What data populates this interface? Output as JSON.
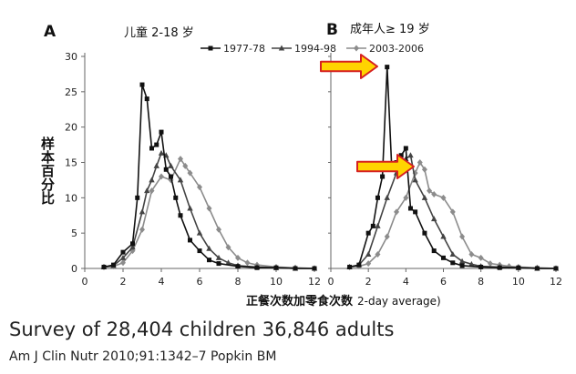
{
  "ylabel": "样本百分比",
  "xlabel": "正餐次数加零食次数",
  "xlabel_suffix": "2-day average)",
  "legend": {
    "entries": [
      {
        "name": "1977-78",
        "color": "#111111",
        "marker": "square"
      },
      {
        "name": "1994-98",
        "color": "#444444",
        "marker": "triangle"
      },
      {
        "name": "2003-2006",
        "color": "#8c8c8c",
        "marker": "diamond"
      }
    ]
  },
  "caption": "Survey of 28,404 children 36,846 adults",
  "reference": "Am J Clin Nutr 2010;91:1342–7 Popkin BM",
  "arrow_color": "#ffd400",
  "arrow_border": "#d62020",
  "chart_data": [
    {
      "type": "line",
      "panel_letter": "A",
      "title": "儿童 2-18 岁",
      "xlim": [
        0,
        12
      ],
      "ylim": [
        0,
        30
      ],
      "xticks": [
        0,
        2,
        4,
        6,
        8,
        10,
        12
      ],
      "yticks": [
        0,
        5,
        10,
        15,
        20,
        25,
        30
      ],
      "series": [
        {
          "name": "1977-78",
          "points": [
            [
              1,
              0.2
            ],
            [
              1.5,
              0.5
            ],
            [
              2,
              2.3
            ],
            [
              2.5,
              3.5
            ],
            [
              2.75,
              10
            ],
            [
              3,
              26
            ],
            [
              3.25,
              24
            ],
            [
              3.5,
              17
            ],
            [
              3.75,
              17.5
            ],
            [
              4,
              19.3
            ],
            [
              4.25,
              14
            ],
            [
              4.5,
              13
            ],
            [
              4.75,
              10
            ],
            [
              5,
              7.5
            ],
            [
              5.5,
              4
            ],
            [
              6,
              2.5
            ],
            [
              6.5,
              1.2
            ],
            [
              7,
              0.7
            ],
            [
              8,
              0.3
            ],
            [
              9,
              0.1
            ],
            [
              10,
              0.1
            ],
            [
              11,
              0
            ],
            [
              12,
              0
            ]
          ]
        },
        {
          "name": "1994-98",
          "points": [
            [
              1,
              0.2
            ],
            [
              1.5,
              0.4
            ],
            [
              2,
              1.5
            ],
            [
              2.5,
              3
            ],
            [
              3,
              8
            ],
            [
              3.25,
              11
            ],
            [
              3.5,
              12.5
            ],
            [
              3.75,
              14.5
            ],
            [
              4,
              16.3
            ],
            [
              4.25,
              16
            ],
            [
              4.5,
              14.5
            ],
            [
              5,
              12.5
            ],
            [
              5.5,
              8.5
            ],
            [
              6,
              5
            ],
            [
              6.5,
              2.8
            ],
            [
              7,
              1.5
            ],
            [
              7.5,
              0.8
            ],
            [
              8,
              0.4
            ],
            [
              9,
              0.2
            ],
            [
              10,
              0.1
            ],
            [
              11,
              0
            ],
            [
              12,
              0
            ]
          ]
        },
        {
          "name": "2003-2006",
          "points": [
            [
              1,
              0.2
            ],
            [
              1.5,
              0.3
            ],
            [
              2,
              0.8
            ],
            [
              2.5,
              2.5
            ],
            [
              3,
              5.5
            ],
            [
              3.5,
              11
            ],
            [
              4,
              13
            ],
            [
              4.5,
              12.5
            ],
            [
              5,
              15.5
            ],
            [
              5.25,
              14.5
            ],
            [
              5.5,
              13.5
            ],
            [
              6,
              11.5
            ],
            [
              6.5,
              8.5
            ],
            [
              7,
              5.5
            ],
            [
              7.5,
              3
            ],
            [
              8,
              1.5
            ],
            [
              8.5,
              0.8
            ],
            [
              9,
              0.5
            ],
            [
              10,
              0.2
            ],
            [
              11,
              0.1
            ],
            [
              12,
              0
            ]
          ]
        }
      ]
    },
    {
      "type": "line",
      "panel_letter": "B",
      "title": "成年人≥ 19 岁",
      "xlim": [
        0,
        12
      ],
      "ylim": [
        0,
        30
      ],
      "xticks": [
        0,
        2,
        4,
        6,
        8,
        10,
        12
      ],
      "yticks": [
        0,
        5,
        10,
        15,
        20,
        25,
        30
      ],
      "series": [
        {
          "name": "1977-78",
          "points": [
            [
              1,
              0.2
            ],
            [
              1.5,
              0.5
            ],
            [
              2,
              5
            ],
            [
              2.25,
              6
            ],
            [
              2.5,
              10
            ],
            [
              2.75,
              13
            ],
            [
              3,
              28.5
            ],
            [
              3.25,
              14
            ],
            [
              3.5,
              15
            ],
            [
              3.75,
              16
            ],
            [
              4,
              17
            ],
            [
              4.25,
              8.5
            ],
            [
              4.5,
              8
            ],
            [
              5,
              5
            ],
            [
              5.5,
              2.5
            ],
            [
              6,
              1.5
            ],
            [
              6.5,
              0.8
            ],
            [
              7,
              0.4
            ],
            [
              8,
              0.2
            ],
            [
              9,
              0.1
            ],
            [
              10,
              0.1
            ],
            [
              11,
              0
            ],
            [
              12,
              0
            ]
          ]
        },
        {
          "name": "1994-98",
          "points": [
            [
              1,
              0.2
            ],
            [
              1.5,
              0.5
            ],
            [
              2,
              2
            ],
            [
              2.5,
              6
            ],
            [
              3,
              10
            ],
            [
              3.5,
              13.5
            ],
            [
              4,
              15.5
            ],
            [
              4.25,
              16
            ],
            [
              4.5,
              12.5
            ],
            [
              5,
              10
            ],
            [
              5.5,
              7
            ],
            [
              6,
              4.5
            ],
            [
              6.5,
              2
            ],
            [
              7,
              1
            ],
            [
              7.5,
              0.6
            ],
            [
              8,
              0.3
            ],
            [
              9,
              0.2
            ],
            [
              10,
              0.1
            ],
            [
              11,
              0
            ],
            [
              12,
              0
            ]
          ]
        },
        {
          "name": "2003-2006",
          "points": [
            [
              1,
              0.2
            ],
            [
              1.5,
              0.3
            ],
            [
              2,
              0.7
            ],
            [
              2.5,
              2
            ],
            [
              3,
              4.5
            ],
            [
              3.5,
              8
            ],
            [
              4,
              10
            ],
            [
              4.5,
              13.5
            ],
            [
              4.75,
              15
            ],
            [
              5,
              14
            ],
            [
              5.25,
              11
            ],
            [
              5.5,
              10.5
            ],
            [
              6,
              10
            ],
            [
              6.5,
              8
            ],
            [
              7,
              4.5
            ],
            [
              7.5,
              2
            ],
            [
              8,
              1.5
            ],
            [
              8.5,
              0.7
            ],
            [
              9,
              0.5
            ],
            [
              9.5,
              0.3
            ],
            [
              10,
              0.2
            ],
            [
              11,
              0.1
            ],
            [
              12,
              0
            ]
          ]
        }
      ]
    }
  ]
}
